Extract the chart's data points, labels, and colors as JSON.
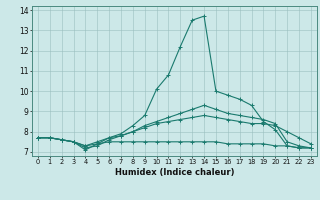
{
  "xlabel": "Humidex (Indice chaleur)",
  "ylabel": "",
  "bg_color": "#cce8e8",
  "line_color": "#1a7a6e",
  "xlim": [
    -0.5,
    23.5
  ],
  "ylim": [
    6.8,
    14.2
  ],
  "yticks": [
    7,
    8,
    9,
    10,
    11,
    12,
    13,
    14
  ],
  "xticks": [
    0,
    1,
    2,
    3,
    4,
    5,
    6,
    7,
    8,
    9,
    10,
    11,
    12,
    13,
    14,
    15,
    16,
    17,
    18,
    19,
    20,
    21,
    22,
    23
  ],
  "lines": [
    [
      7.7,
      7.7,
      7.6,
      7.5,
      7.1,
      7.4,
      7.7,
      7.9,
      8.3,
      8.8,
      10.1,
      10.8,
      12.2,
      13.5,
      13.7,
      10.0,
      9.8,
      9.6,
      9.3,
      8.5,
      8.1,
      7.3,
      7.2,
      7.2
    ],
    [
      7.7,
      7.7,
      7.6,
      7.5,
      7.3,
      7.5,
      7.7,
      7.8,
      8.0,
      8.2,
      8.4,
      8.5,
      8.6,
      8.7,
      8.8,
      8.7,
      8.6,
      8.5,
      8.4,
      8.4,
      8.3,
      8.0,
      7.7,
      7.4
    ],
    [
      7.7,
      7.7,
      7.6,
      7.5,
      7.3,
      7.4,
      7.5,
      7.5,
      7.5,
      7.5,
      7.5,
      7.5,
      7.5,
      7.5,
      7.5,
      7.5,
      7.4,
      7.4,
      7.4,
      7.4,
      7.3,
      7.3,
      7.2,
      7.2
    ],
    [
      7.7,
      7.7,
      7.6,
      7.5,
      7.2,
      7.3,
      7.6,
      7.8,
      8.0,
      8.3,
      8.5,
      8.7,
      8.9,
      9.1,
      9.3,
      9.1,
      8.9,
      8.8,
      8.7,
      8.6,
      8.4,
      7.5,
      7.3,
      7.2
    ]
  ]
}
